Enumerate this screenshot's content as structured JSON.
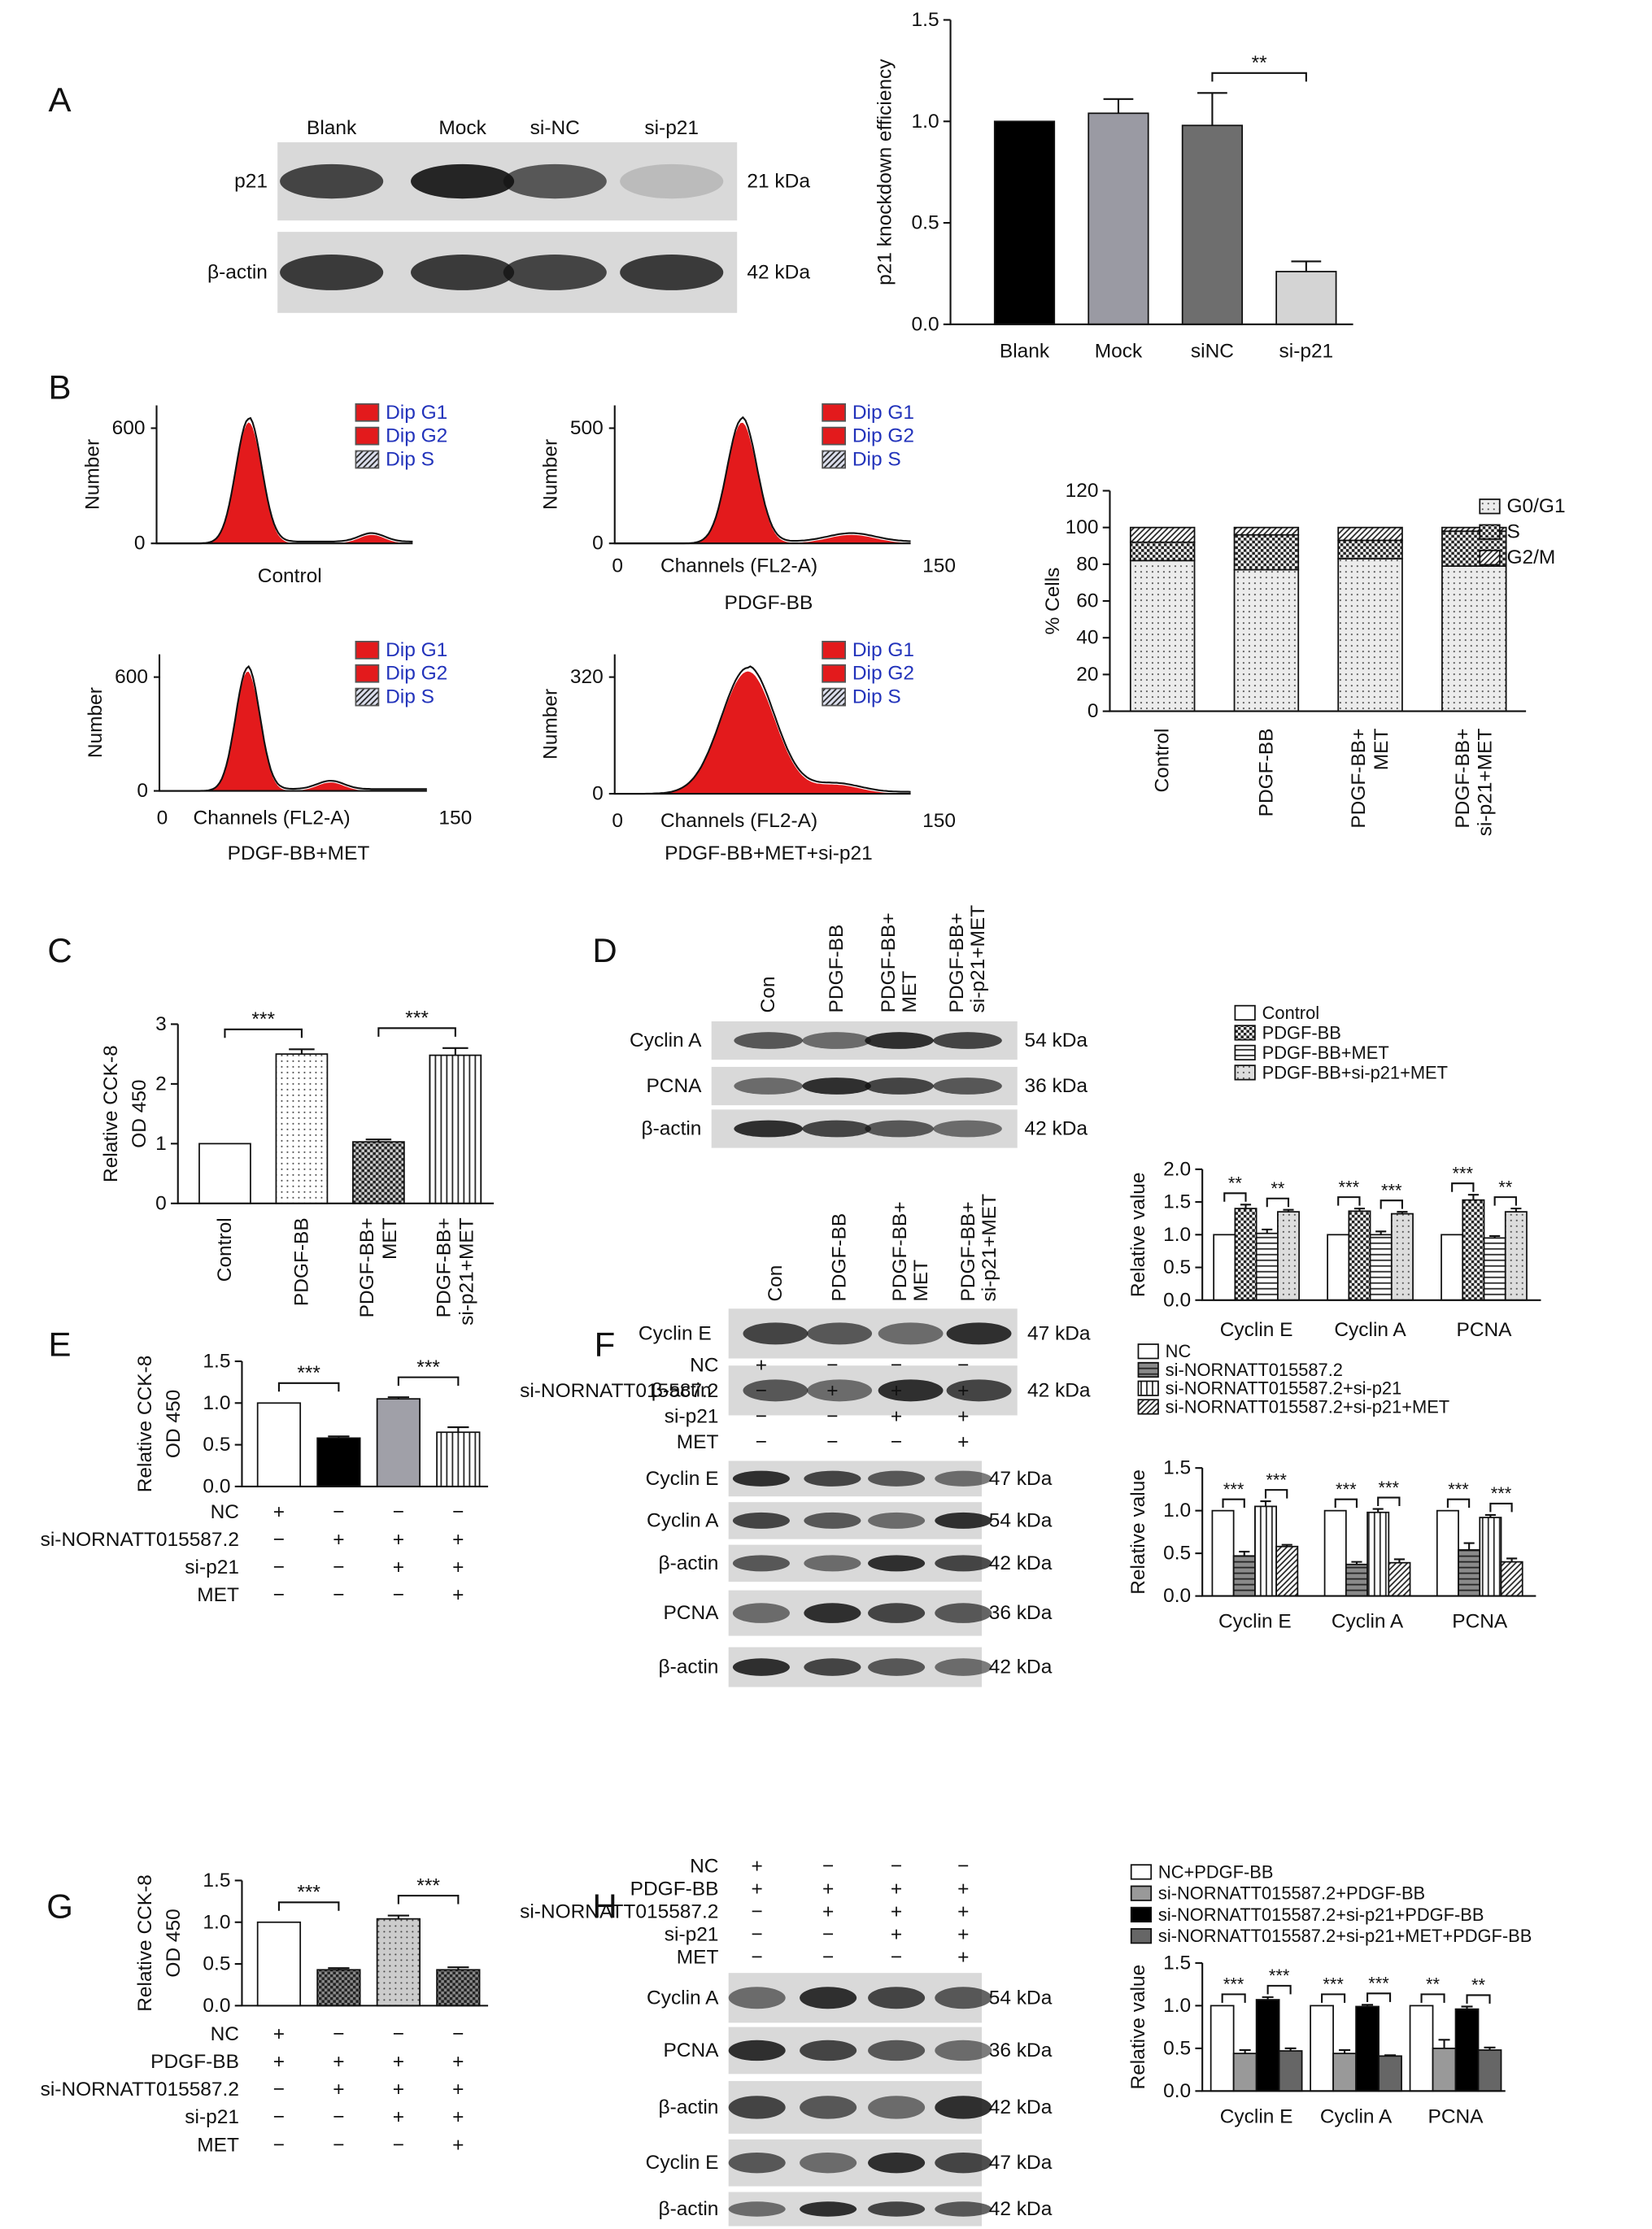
{
  "panel_labels": [
    "A",
    "B",
    "C",
    "D",
    "E",
    "F",
    "G",
    "H"
  ],
  "blots": [
    {
      "lanes": [
        "Blank",
        "Mock",
        "si-NC",
        "si-p21"
      ],
      "rows": [
        {
          "label": "p21",
          "size": "21 kDa"
        },
        {
          "label": "β-actin",
          "size": "42 kDa"
        }
      ]
    },
    {
      "lanes": [
        "Con",
        "PDGF-BB",
        [
          "PDGF-BB+",
          "MET"
        ],
        [
          "PDGF-BB+",
          "si-p21+MET"
        ]
      ],
      "rows": [
        {
          "label": "Cyclin A",
          "size": "54 kDa"
        },
        {
          "label": "PCNA",
          "size": "36 kDa"
        },
        {
          "label": "β-actin",
          "size": "42 kDa"
        }
      ]
    },
    {
      "lanes": [
        "Con",
        "PDGF-BB",
        [
          "PDGF-BB+",
          "MET"
        ],
        [
          "PDGF-BB+",
          "si-p21+MET"
        ]
      ],
      "rows": [
        {
          "label": "Cyclin E",
          "size": "47 kDa"
        },
        {
          "label": "β-actin",
          "size": "42 kDa"
        }
      ]
    },
    {
      "conditions": [
        {
          "label": "NC",
          "signs": [
            "+",
            "−",
            "−",
            "−"
          ]
        },
        {
          "label": "si-NORNATT015587.2",
          "signs": [
            "−",
            "+",
            "+",
            "+"
          ]
        },
        {
          "label": "si-p21",
          "signs": [
            "−",
            "−",
            "+",
            "+"
          ]
        },
        {
          "label": "MET",
          "signs": [
            "−",
            "−",
            "−",
            "+"
          ]
        }
      ],
      "rows": [
        {
          "label": "Cyclin E",
          "size": "47 kDa"
        },
        {
          "label": "Cyclin A",
          "size": "54 kDa"
        },
        {
          "label": "β-actin",
          "size": "42 kDa"
        },
        {
          "label": "PCNA",
          "size": "36 kDa"
        },
        {
          "label": "β-actin",
          "size": "42 kDa"
        }
      ]
    },
    {
      "conditions": [
        {
          "label": "NC",
          "signs": [
            "+",
            "−",
            "−",
            "−"
          ]
        },
        {
          "label": "PDGF-BB",
          "signs": [
            "+",
            "+",
            "+",
            "+"
          ]
        },
        {
          "label": "si-NORNATT015587.2",
          "signs": [
            "−",
            "+",
            "+",
            "+"
          ]
        },
        {
          "label": "si-p21",
          "signs": [
            "−",
            "−",
            "+",
            "+"
          ]
        },
        {
          "label": "MET",
          "signs": [
            "−",
            "−",
            "−",
            "+"
          ]
        }
      ],
      "rows": [
        {
          "label": "Cyclin A",
          "size": "54 kDa"
        },
        {
          "label": "PCNA",
          "size": "36 kDa"
        },
        {
          "label": "β-actin",
          "size": "42 kDa"
        },
        {
          "label": "Cyclin E",
          "size": "47 kDa"
        },
        {
          "label": "β-actin",
          "size": "42 kDa"
        }
      ]
    }
  ],
  "flow_cytometry": {
    "legend": [
      "Dip G1",
      "Dip G2",
      "Dip S"
    ],
    "plots": [
      {
        "ylabel": "Number",
        "yticks": [
          "600",
          "0"
        ],
        "title": "Control"
      },
      {
        "ylabel": "Number",
        "yticks": [
          "500",
          "0"
        ],
        "xlabel": "Channels (FL2-A)",
        "xticks": [
          "0",
          "150"
        ],
        "title": "PDGF-BB"
      },
      {
        "ylabel": "Number",
        "yticks": [
          "600",
          "0"
        ],
        "xlabel": "Channels (FL2-A)",
        "xticks": [
          "0",
          "150"
        ],
        "title": "PDGF-BB+MET"
      },
      {
        "ylabel": "Number",
        "yticks": [
          "320",
          "0"
        ],
        "xlabel": "Channels (FL2-A)",
        "xticks": [
          "0",
          "150"
        ],
        "title": "PDGF-BB+MET+si-p21"
      }
    ]
  },
  "chart_data": [
    {
      "type": "bar",
      "ylabel": "p21 knockdown efficiency",
      "categories": [
        "Blank",
        "Mock",
        "siNC",
        "si-p21"
      ],
      "values": [
        1.0,
        1.04,
        0.98,
        0.26
      ],
      "errors": [
        0,
        0.07,
        0.16,
        0.05
      ],
      "colors": [
        "#000000",
        "#9a9aa3",
        "#6e6e6e",
        "#d4d4d4"
      ],
      "patterns": [
        "none",
        "none",
        "none",
        "none"
      ],
      "ylim": [
        0,
        1.5
      ],
      "yticks": [
        {
          "value": 0,
          "label": "0.0"
        },
        {
          "value": 0.5,
          "label": "0.5"
        },
        {
          "value": 1,
          "label": "1.0"
        },
        {
          "value": 1.5,
          "label": "1.5"
        }
      ],
      "annotations": [
        "**"
      ]
    },
    {
      "type": "bar",
      "mode": "stacked",
      "ylabel": "% Cells",
      "categories": [
        [
          "Control"
        ],
        [
          "PDGF-BB"
        ],
        [
          "PDGF-BB+",
          "MET"
        ],
        [
          "PDGF-BB+",
          "si-p21+MET"
        ]
      ],
      "series": [
        {
          "name": "G0/G1",
          "color": "#ececec",
          "pattern": "dots",
          "values": [
            82,
            77,
            83,
            79
          ]
        },
        {
          "name": "S",
          "color": "#ffffff",
          "pattern": "checks",
          "values": [
            10,
            19,
            10,
            19
          ]
        },
        {
          "name": "G2/M",
          "color": "#ffffff",
          "pattern": "diag",
          "values": [
            8,
            4,
            7,
            2
          ]
        }
      ],
      "ylim": [
        0,
        120
      ],
      "yticks": [
        0,
        20,
        40,
        60,
        80,
        100,
        120
      ],
      "legend": "top-right"
    },
    {
      "type": "bar",
      "ylabel": [
        "Relative CCK-8",
        "OD 450"
      ],
      "categories": [
        [
          "Control"
        ],
        [
          "PDGF-BB"
        ],
        [
          "PDGF-BB+",
          "MET"
        ],
        [
          "PDGF-BB+",
          "si-p21+MET"
        ]
      ],
      "values": [
        1,
        2.5,
        1.03,
        2.48
      ],
      "errors": [
        0,
        0.08,
        0.04,
        0.12
      ],
      "colors": [
        "#ffffff",
        "#ffffff",
        "#cccccc",
        "#ffffff"
      ],
      "patterns": [
        "none",
        "dots",
        "checks",
        "vlines"
      ],
      "ylim": [
        0,
        3
      ],
      "yticks": [
        0,
        1,
        2,
        3
      ],
      "annotations": [
        "***",
        "***"
      ]
    },
    {
      "type": "bar",
      "mode": "grouped",
      "ylabel": "Relative value",
      "categories": [
        "Cyclin E",
        "Cyclin A",
        "PCNA"
      ],
      "series": [
        {
          "name": "Control",
          "color": "#ffffff",
          "pattern": "none",
          "values": [
            1,
            1,
            1
          ],
          "errors": [
            0,
            0,
            0
          ]
        },
        {
          "name": "PDGF-BB",
          "color": "#ffffff",
          "pattern": "checks",
          "values": [
            1.4,
            1.36,
            1.53
          ],
          "errors": [
            0.06,
            0.04,
            0.08
          ]
        },
        {
          "name": "PDGF-BB+MET",
          "color": "#ffffff",
          "pattern": "hlines",
          "values": [
            1.02,
            1.0,
            0.95
          ],
          "errors": [
            0.06,
            0.05,
            0.03
          ]
        },
        {
          "name": "PDGF-BB+si-p21+MET",
          "color": "#dddddd",
          "pattern": "dots",
          "values": [
            1.35,
            1.32,
            1.35
          ],
          "errors": [
            0.03,
            0.03,
            0.05
          ]
        }
      ],
      "ylim": [
        0,
        2
      ],
      "yticks": [
        {
          "value": 0,
          "label": "0.0"
        },
        {
          "value": 0.5,
          "label": "0.5"
        },
        {
          "value": 1,
          "label": "1.0"
        },
        {
          "value": 1.5,
          "label": "1.5"
        },
        {
          "value": 2,
          "label": "2.0"
        }
      ],
      "legend": "top",
      "annotations": [
        "**",
        "**",
        "***",
        "***",
        "***",
        "**"
      ]
    },
    {
      "type": "bar",
      "ylabel": [
        "Relative CCK-8",
        "OD 450"
      ],
      "categories": [
        null,
        null,
        null,
        null
      ],
      "values": [
        1.0,
        0.58,
        1.05,
        0.65
      ],
      "errors": [
        0,
        0.02,
        0.02,
        0.06
      ],
      "colors": [
        "#ffffff",
        "#000000",
        "#a0a0a8",
        "#ffffff"
      ],
      "patterns": [
        "none",
        "none",
        "none",
        "vlines"
      ],
      "ylim": [
        0,
        1.5
      ],
      "yticks": [
        {
          "value": 0,
          "label": "0.0"
        },
        {
          "value": 0.5,
          "label": "0.5"
        },
        {
          "value": 1,
          "label": "1.0"
        },
        {
          "value": 1.5,
          "label": "1.5"
        }
      ],
      "annotations": [
        "***",
        "***"
      ],
      "condition_table": [
        {
          "label": "NC",
          "signs": [
            "+",
            "−",
            "−",
            "−"
          ]
        },
        {
          "label": "si-NORNATT015587.2",
          "signs": [
            "−",
            "+",
            "+",
            "+"
          ]
        },
        {
          "label": "si-p21",
          "signs": [
            "−",
            "−",
            "+",
            "+"
          ]
        },
        {
          "label": "MET",
          "signs": [
            "−",
            "−",
            "−",
            "+"
          ]
        }
      ]
    },
    {
      "type": "bar",
      "mode": "grouped",
      "ylabel": "Relative value",
      "categories": [
        "Cyclin E",
        "Cyclin A",
        "PCNA"
      ],
      "series": [
        {
          "name": "NC",
          "color": "#ffffff",
          "pattern": "none",
          "values": [
            1,
            1,
            1
          ],
          "errors": [
            0,
            0,
            0
          ]
        },
        {
          "name": "si-NORNATT015587.2",
          "color": "#8a8a8a",
          "pattern": "hlines",
          "values": [
            0.47,
            0.37,
            0.54
          ],
          "errors": [
            0.05,
            0.03,
            0.08
          ]
        },
        {
          "name": "si-NORNATT015587.2+si-p21",
          "color": "#ffffff",
          "pattern": "vlines",
          "values": [
            1.05,
            0.98,
            0.92
          ],
          "errors": [
            0.06,
            0.04,
            0.03
          ]
        },
        {
          "name": "si-NORNATT015587.2+si-p21+MET",
          "color": "#ffffff",
          "pattern": "diag",
          "values": [
            0.58,
            0.39,
            0.4
          ],
          "errors": [
            0.02,
            0.04,
            0.04
          ]
        }
      ],
      "ylim": [
        0,
        1.5
      ],
      "yticks": [
        {
          "value": 0,
          "label": "0.0"
        },
        {
          "value": 0.5,
          "label": "0.5"
        },
        {
          "value": 1,
          "label": "1.0"
        },
        {
          "value": 1.5,
          "label": "1.5"
        }
      ],
      "legend": "top",
      "annotations": [
        "***",
        "***",
        "***",
        "***",
        "***",
        "***"
      ]
    },
    {
      "type": "bar",
      "ylabel": [
        "Relative CCK-8",
        "OD 450"
      ],
      "categories": [
        null,
        null,
        null,
        null
      ],
      "values": [
        1.0,
        0.43,
        1.04,
        0.43
      ],
      "errors": [
        0,
        0.02,
        0.04,
        0.03
      ],
      "colors": [
        "#ffffff",
        "#8a8a8a",
        "#cccccc",
        "#8a8a8a"
      ],
      "patterns": [
        "none",
        "checks",
        "dots",
        "checks"
      ],
      "ylim": [
        0,
        1.5
      ],
      "yticks": [
        {
          "value": 0,
          "label": "0.0"
        },
        {
          "value": 0.5,
          "label": "0.5"
        },
        {
          "value": 1,
          "label": "1.0"
        },
        {
          "value": 1.5,
          "label": "1.5"
        }
      ],
      "annotations": [
        "***",
        "***"
      ],
      "condition_table": [
        {
          "label": "NC",
          "signs": [
            "+",
            "−",
            "−",
            "−"
          ]
        },
        {
          "label": "PDGF-BB",
          "signs": [
            "+",
            "+",
            "+",
            "+"
          ]
        },
        {
          "label": "si-NORNATT015587.2",
          "signs": [
            "−",
            "+",
            "+",
            "+"
          ]
        },
        {
          "label": "si-p21",
          "signs": [
            "−",
            "−",
            "+",
            "+"
          ]
        },
        {
          "label": "MET",
          "signs": [
            "−",
            "−",
            "−",
            "+"
          ]
        }
      ]
    },
    {
      "type": "bar",
      "mode": "grouped",
      "ylabel": "Relative value",
      "categories": [
        "Cyclin E",
        "Cyclin A",
        "PCNA"
      ],
      "series": [
        {
          "name": "NC+PDGF-BB",
          "color": "#ffffff",
          "pattern": "none",
          "values": [
            1,
            1,
            1
          ],
          "errors": [
            0,
            0,
            0
          ]
        },
        {
          "name": "si-NORNATT015587.2+PDGF-BB",
          "color": "#999999",
          "pattern": "none",
          "values": [
            0.44,
            0.44,
            0.5
          ],
          "errors": [
            0.04,
            0.04,
            0.1
          ]
        },
        {
          "name": "si-NORNATT015587.2+si-p21+PDGF-BB",
          "color": "#000000",
          "pattern": "none",
          "values": [
            1.07,
            0.99,
            0.96
          ],
          "errors": [
            0.03,
            0.02,
            0.03
          ]
        },
        {
          "name": "si-NORNATT015587.2+si-p21+MET+PDGF-BB",
          "color": "#666666",
          "pattern": "none",
          "values": [
            0.47,
            0.41,
            0.48
          ],
          "errors": [
            0.03,
            0.01,
            0.03
          ]
        }
      ],
      "ylim": [
        0,
        1.5
      ],
      "yticks": [
        {
          "value": 0,
          "label": "0.0"
        },
        {
          "value": 0.5,
          "label": "0.5"
        },
        {
          "value": 1,
          "label": "1.0"
        },
        {
          "value": 1.5,
          "label": "1.5"
        }
      ],
      "legend": "top",
      "annotations": [
        "***",
        "***",
        "***",
        "***",
        "**",
        "**"
      ]
    }
  ]
}
